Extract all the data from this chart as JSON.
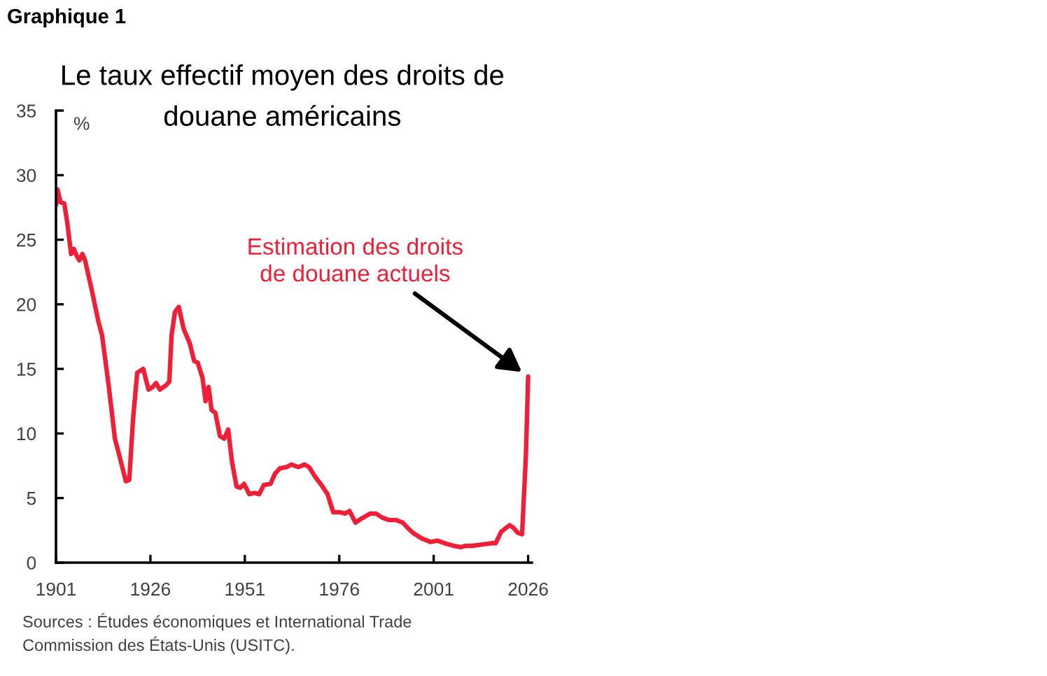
{
  "chart_data": {
    "type": "line",
    "title": "Le taux effectif moyen des droits de douane américains",
    "ylabel": "%",
    "annotations": [
      "Graphique 1",
      {
        "text": "Estimation des droits de douane actuels",
        "x": 2026,
        "y": 14.4
      },
      "Sources : Études économiques et International Trade Commission des États-Unis (USITC)."
    ],
    "x": [
      1901.0,
      1901.4,
      1902.2,
      1903.2,
      1904.0,
      1905.0,
      1905.7,
      1906.4,
      1907.2,
      1908.0,
      1908.7,
      1910.4,
      1912.2,
      1913.2,
      1915.0,
      1916.6,
      1918.2,
      1919.5,
      1920.4,
      1921.4,
      1922.5,
      1924.1,
      1925.5,
      1926.6,
      1927.5,
      1928.5,
      1930.0,
      1931.0,
      1931.6,
      1932.5,
      1933.5,
      1934.8,
      1936.4,
      1937.6,
      1938.5,
      1939.8,
      1940.6,
      1941.4,
      1942.2,
      1943.2,
      1944.4,
      1945.5,
      1946.6,
      1947.6,
      1948.8,
      1949.8,
      1950.8,
      1952.2,
      1953.5,
      1954.8,
      1956.0,
      1957.8,
      1959.0,
      1960.3,
      1962.1,
      1963.3,
      1965.2,
      1966.8,
      1968.0,
      1969.5,
      1971.3,
      1972.9,
      1974.4,
      1976.2,
      1977.5,
      1978.7,
      1980.3,
      1981.8,
      1984.2,
      1985.7,
      1987.3,
      1989.1,
      1991.0,
      1992.8,
      1994.1,
      1995.5,
      1997.7,
      2000.2,
      2002.0,
      2003.9,
      2006.3,
      2008.2,
      2009.4,
      2011.3,
      2013.7,
      2016.2,
      2017.4,
      2018.9,
      2021.1,
      2022.1,
      2023.3,
      2024.4,
      2025.4,
      2026.0
    ],
    "series": [
      {
        "color": "#ee1f36",
        "values": [
          27.7,
          28.9,
          27.9,
          27.8,
          26.3,
          23.9,
          24.3,
          23.8,
          23.4,
          23.9,
          23.4,
          21.2,
          18.7,
          17.6,
          13.6,
          9.6,
          7.8,
          6.3,
          6.4,
          11.1,
          14.7,
          15.0,
          13.4,
          13.6,
          13.9,
          13.4,
          13.7,
          14.0,
          17.6,
          19.4,
          19.8,
          18.1,
          17.0,
          15.6,
          15.5,
          14.3,
          12.5,
          13.6,
          11.8,
          11.6,
          9.8,
          9.6,
          10.3,
          7.8,
          5.9,
          5.8,
          6.1,
          5.3,
          5.4,
          5.3,
          6.0,
          6.1,
          6.9,
          7.3,
          7.4,
          7.6,
          7.4,
          7.6,
          7.4,
          6.7,
          6.0,
          5.3,
          3.9,
          3.9,
          3.8,
          4.0,
          3.1,
          3.4,
          3.8,
          3.8,
          3.5,
          3.3,
          3.3,
          3.1,
          2.7,
          2.3,
          1.9,
          1.6,
          1.7,
          1.5,
          1.3,
          1.2,
          1.3,
          1.3,
          1.4,
          1.5,
          1.5,
          2.4,
          2.9,
          2.7,
          2.3,
          2.2,
          8.2,
          14.4
        ]
      }
    ],
    "xlim": [
      1901,
      2027
    ],
    "xticks": [
      1901,
      1926,
      1951,
      1976,
      2001,
      2026
    ],
    "ylim": [
      0,
      35
    ],
    "yticks": [
      0,
      5,
      10,
      15,
      20,
      25,
      30,
      35
    ]
  }
}
